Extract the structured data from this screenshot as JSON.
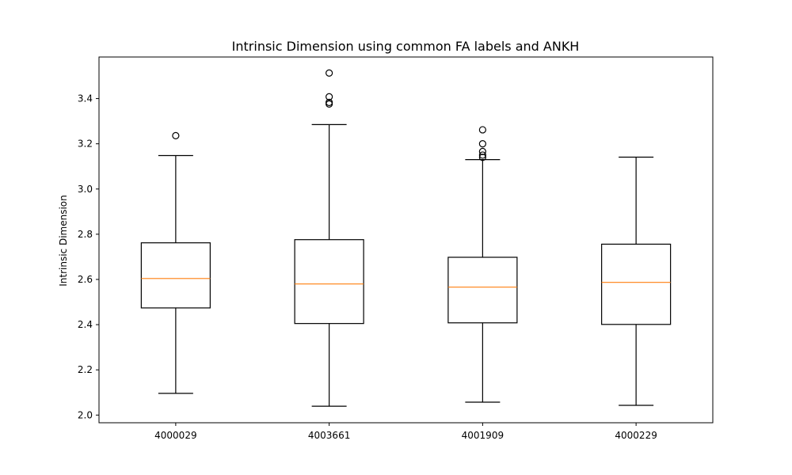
{
  "chart_data": {
    "type": "boxplot",
    "title": "Intrinsic Dimension using common FA labels and ANKH",
    "xlabel": "",
    "ylabel": "Intrinsic Dimension",
    "ylim": [
      1.966,
      3.584
    ],
    "yticks": [
      2.0,
      2.2,
      2.4,
      2.6,
      2.8,
      3.0,
      3.2,
      3.4
    ],
    "ytick_labels": [
      "2.0",
      "2.2",
      "2.4",
      "2.6",
      "2.8",
      "3.0",
      "3.2",
      "3.4"
    ],
    "grid": false,
    "colors": {
      "box": "#000000",
      "median": "#ff7f0e",
      "flier": "#000000"
    },
    "categories": [
      "4000029",
      "4003661",
      "4001909",
      "4000229"
    ],
    "boxes": [
      {
        "label": "4000029",
        "whisker_low": 2.096,
        "q1": 2.474,
        "median": 2.604,
        "q3": 2.762,
        "whisker_high": 3.148,
        "fliers": [
          3.236
        ]
      },
      {
        "label": "4003661",
        "whisker_low": 2.039,
        "q1": 2.405,
        "median": 2.58,
        "q3": 2.776,
        "whisker_high": 3.285,
        "fliers": [
          3.376,
          3.383,
          3.408,
          3.513
        ]
      },
      {
        "label": "4001909",
        "whisker_low": 2.057,
        "q1": 2.408,
        "median": 2.566,
        "q3": 2.698,
        "whisker_high": 3.13,
        "fliers": [
          3.14,
          3.15,
          3.166,
          3.2,
          3.262
        ]
      },
      {
        "label": "4000229",
        "whisker_low": 2.043,
        "q1": 2.401,
        "median": 2.587,
        "q3": 2.756,
        "whisker_high": 3.141,
        "fliers": []
      }
    ]
  }
}
